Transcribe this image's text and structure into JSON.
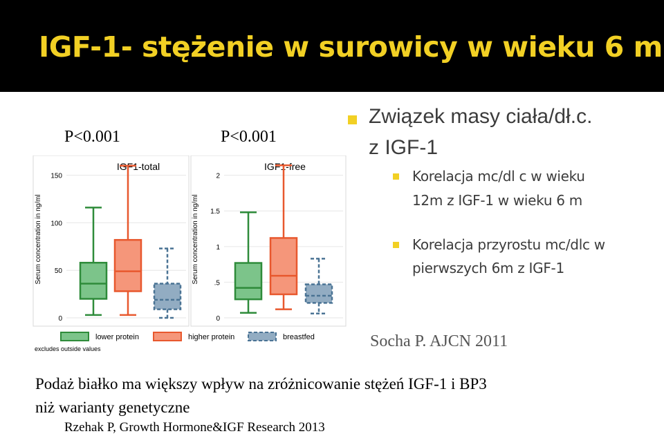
{
  "slide": {
    "title": "IGF-1- stężenie w surowicy w wieku 6 m.",
    "p_values": [
      "P<0.001",
      "P<0.001"
    ],
    "colors": {
      "title_bg": "#000000",
      "title_text": "#f2d024",
      "bullet": "#f2d024"
    }
  },
  "bullets": {
    "main_line1": "Związek masy ciała/dł.c.",
    "main_line2": "z IGF-1",
    "sub1_line1": "Korelacja mc/dl c  w wieku",
    "sub1_line2": "12m z IGF-1 w wieku 6 m",
    "sub2_line1": "Korelacja przyrostu mc/dlc w",
    "sub2_line2": "pierwszych 6m z IGF-1"
  },
  "citation1": "Socha P. AJCN 2011",
  "conclusion": {
    "line1": "Podaż białko ma większy wpływ na zróżnicowanie stężeń IGF-1 i BP3",
    "line2": "niż warianty genetyczne"
  },
  "citation2": "Rzehak P, Growth Hormone&IGF Research 2013",
  "chart_data": [
    {
      "type": "box",
      "title": "IGF1-total",
      "ylabel": "Serum concentration in ng/ml",
      "ylim": [
        0,
        165
      ],
      "yticks": [
        0,
        50,
        100,
        150
      ],
      "ytick_labels": [
        "0",
        "50",
        "100",
        "150"
      ],
      "categories": [
        "lower protein",
        "higher protein",
        "breastfed"
      ],
      "boxes": [
        {
          "name": "lower protein",
          "min": 3,
          "q1": 20,
          "median": 36,
          "q3": 58,
          "max": 116,
          "color": "#2e8b3a",
          "fill": "#7cc48a"
        },
        {
          "name": "higher protein",
          "min": 3,
          "q1": 28,
          "median": 49,
          "q3": 82,
          "max": 160,
          "color": "#e8582e",
          "fill": "#f5967a"
        },
        {
          "name": "breastfed",
          "min": 0,
          "q1": 9,
          "median": 19,
          "q3": 36,
          "max": 73,
          "color": "#4a7394",
          "fill": "#92acc2",
          "dashed": true
        }
      ]
    },
    {
      "type": "box",
      "title": "IGF1-free",
      "ylabel": "Serum concentration in ng/ml",
      "ylim": [
        0,
        2.2
      ],
      "yticks": [
        0,
        0.5,
        1,
        1.5,
        2
      ],
      "ytick_labels": [
        "0",
        ".5",
        "1",
        "1.5",
        "2"
      ],
      "categories": [
        "lower protein",
        "higher protein",
        "breastfed"
      ],
      "boxes": [
        {
          "name": "lower protein",
          "min": 0.07,
          "q1": 0.26,
          "median": 0.42,
          "q3": 0.77,
          "max": 1.48,
          "color": "#2e8b3a",
          "fill": "#7cc48a"
        },
        {
          "name": "higher protein",
          "min": 0.12,
          "q1": 0.33,
          "median": 0.59,
          "q3": 1.12,
          "max": 2.14,
          "color": "#e8582e",
          "fill": "#f5967a"
        },
        {
          "name": "breastfed",
          "min": 0.06,
          "q1": 0.21,
          "median": 0.31,
          "q3": 0.47,
          "max": 0.83,
          "color": "#4a7394",
          "fill": "#92acc2",
          "dashed": true
        }
      ]
    }
  ],
  "legend": {
    "items": [
      {
        "label": "lower protein",
        "color": "#2e8b3a",
        "fill": "#7cc48a"
      },
      {
        "label": "higher protein",
        "color": "#e8582e",
        "fill": "#f5967a"
      },
      {
        "label": "breastfed",
        "color": "#4a7394",
        "fill": "#92acc2"
      }
    ],
    "placement": "bottom",
    "note": "excludes outside values"
  }
}
